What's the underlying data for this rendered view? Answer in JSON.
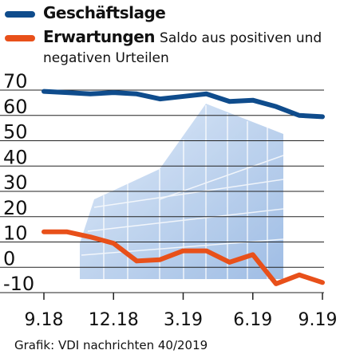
{
  "chart_data": {
    "type": "line",
    "x": [
      "9.18",
      "10.18",
      "11.18",
      "12.18",
      "1.19",
      "2.19",
      "3.19",
      "4.19",
      "5.19",
      "6.19",
      "7.19",
      "8.19",
      "9.19"
    ],
    "series": [
      {
        "name": "Geschäftslage",
        "color": "#0f4c8c",
        "values": [
          69.5,
          69,
          68.5,
          69,
          68.5,
          66.5,
          67.5,
          68.5,
          65.5,
          66,
          63.5,
          60,
          59.5
        ]
      },
      {
        "name": "Erwartungen",
        "color": "#e8501a",
        "values": [
          14,
          14,
          12,
          9.5,
          2.5,
          3,
          6.5,
          6.5,
          2,
          5,
          -6.5,
          -3,
          -6
        ]
      }
    ],
    "xticks": [
      "9.18",
      "12.18",
      "3.19",
      "6.19",
      "9.19"
    ],
    "yticks": [
      "70",
      "60",
      "50",
      "40",
      "30",
      "20",
      "10",
      "0",
      "-10"
    ],
    "ylim": [
      -10,
      70
    ],
    "grid": true,
    "legend_note": [
      "Saldo aus positiven und",
      "negativen Urteilen"
    ]
  },
  "source": "Grafik: VDI nachrichten 40/2019"
}
